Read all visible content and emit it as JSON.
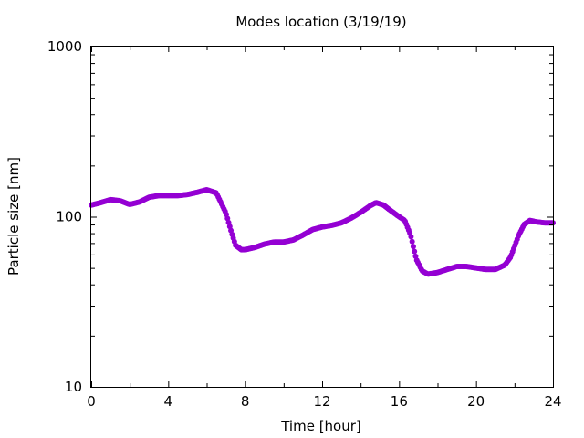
{
  "chart_data": {
    "type": "scatter",
    "title": "Modes location (3/19/19)",
    "xlabel": "Time [hour]",
    "ylabel": "Particle size [nm]",
    "xlim": [
      0,
      24
    ],
    "ylim": [
      10,
      1000
    ],
    "yscale": "log",
    "grid": false,
    "legend": "none",
    "x_ticks": [
      0,
      4,
      8,
      12,
      16,
      20,
      24
    ],
    "x_tick_labels": [
      "0",
      "4",
      "8",
      "12",
      "16",
      "20",
      "24"
    ],
    "y_ticks": [
      10,
      100,
      1000
    ],
    "y_tick_labels": [
      "10",
      "100",
      "1000"
    ],
    "marker_color": "#9400d3",
    "series": [
      {
        "points": [
          [
            0,
            117
          ],
          [
            0.5,
            121
          ],
          [
            1,
            126
          ],
          [
            1.5,
            124
          ],
          [
            2,
            118
          ],
          [
            2.5,
            122
          ],
          [
            3,
            130
          ],
          [
            3.5,
            133
          ],
          [
            4,
            133
          ],
          [
            4.5,
            133
          ],
          [
            5,
            135
          ],
          [
            5.5,
            139
          ],
          [
            6,
            144
          ],
          [
            6.5,
            138
          ],
          [
            7,
            105
          ],
          [
            7.3,
            80
          ],
          [
            7.5,
            68
          ],
          [
            7.8,
            64
          ],
          [
            8,
            64
          ],
          [
            8.5,
            66
          ],
          [
            9,
            69
          ],
          [
            9.5,
            71
          ],
          [
            10,
            71
          ],
          [
            10.5,
            73
          ],
          [
            11,
            78
          ],
          [
            11.5,
            84
          ],
          [
            12,
            87
          ],
          [
            12.5,
            89
          ],
          [
            13,
            92
          ],
          [
            13.5,
            98
          ],
          [
            14,
            106
          ],
          [
            14.5,
            116
          ],
          [
            14.8,
            121
          ],
          [
            15.2,
            117
          ],
          [
            15.5,
            110
          ],
          [
            16,
            100
          ],
          [
            16.3,
            95
          ],
          [
            16.6,
            78
          ],
          [
            16.9,
            56
          ],
          [
            17.2,
            48
          ],
          [
            17.5,
            46
          ],
          [
            18,
            47
          ],
          [
            18.5,
            49
          ],
          [
            19,
            51
          ],
          [
            19.5,
            51
          ],
          [
            20,
            50
          ],
          [
            20.5,
            49
          ],
          [
            21,
            49
          ],
          [
            21.5,
            52
          ],
          [
            21.8,
            58
          ],
          [
            22.2,
            77
          ],
          [
            22.5,
            90
          ],
          [
            22.8,
            95
          ],
          [
            23.2,
            93
          ],
          [
            23.6,
            92
          ],
          [
            24,
            92
          ]
        ]
      }
    ]
  }
}
